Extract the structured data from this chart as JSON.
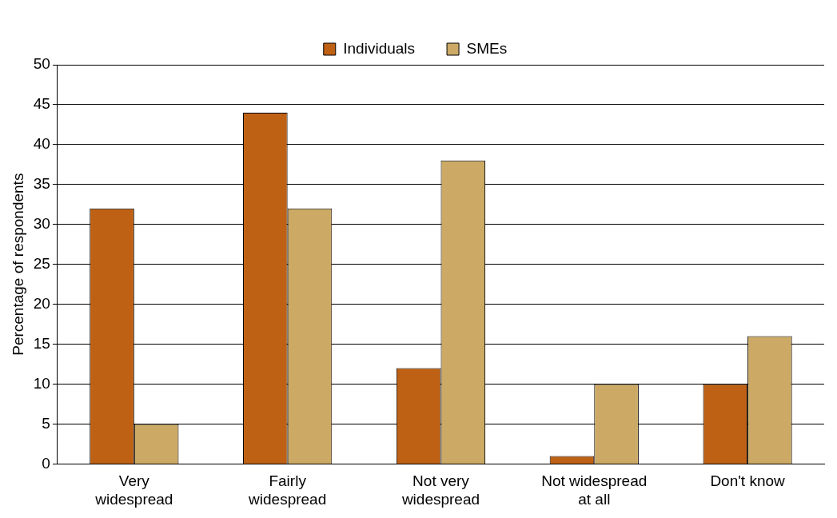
{
  "chart_data": {
    "type": "bar",
    "ylabel": "Percentage of respondents",
    "categories": [
      "Very widespread",
      "Fairly widespread",
      "Not very widespread",
      "Not widespread at all",
      "Don't know"
    ],
    "series": [
      {
        "name": "Individuals",
        "color": "#bf6114",
        "values": [
          32,
          44,
          12,
          1,
          10
        ]
      },
      {
        "name": "SMEs",
        "color": "#ccaa66",
        "values": [
          5,
          32,
          38,
          10,
          16
        ]
      }
    ],
    "ylim": [
      0,
      50
    ],
    "yticks": [
      0,
      5,
      10,
      15,
      20,
      25,
      30,
      35,
      40,
      45,
      50
    ],
    "grid": "y",
    "legend": "top"
  }
}
